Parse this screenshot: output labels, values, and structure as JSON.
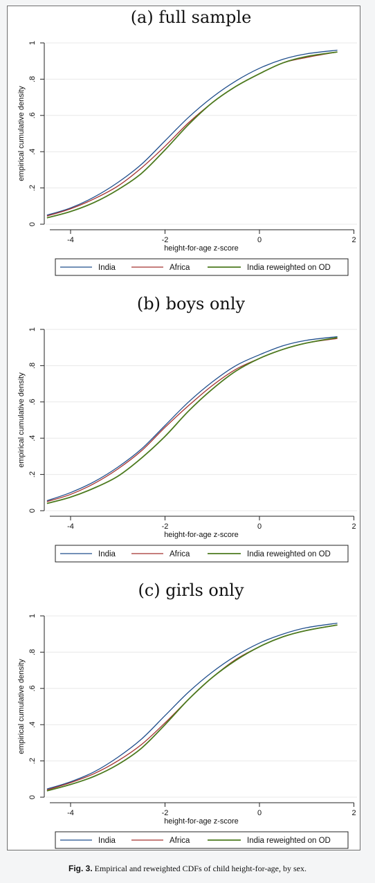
{
  "colors": {
    "India": "#1f4e8c",
    "Africa": "#a3302e",
    "India reweighted on OD": "#4c7a1e",
    "grid": "#e8e8e8",
    "axis": "#222222"
  },
  "caption": {
    "label": "Fig. 3.",
    "text": "Empirical and reweighted CDFs of child height-for-age, by sex."
  },
  "chart_data": [
    {
      "type": "line",
      "title": "(a) full sample",
      "xlabel": "height-for-age z-score",
      "ylabel": "empirical cumulative density",
      "xlim": [
        -4.5,
        1.65
      ],
      "ylim": [
        0,
        1
      ],
      "xticks": [
        "-4",
        "-2",
        "0",
        "2"
      ],
      "yticks": [
        "0",
        ".2",
        ".4",
        ".6",
        ".8",
        "1"
      ],
      "grid": true,
      "legend": "bottom",
      "x": [
        -4.5,
        -4,
        -3.5,
        -3,
        -2.5,
        -2,
        -1.5,
        -1,
        -0.5,
        0,
        0.5,
        1,
        1.65
      ],
      "series": [
        {
          "name": "India",
          "values": [
            0.05,
            0.09,
            0.15,
            0.23,
            0.33,
            0.46,
            0.59,
            0.7,
            0.79,
            0.86,
            0.91,
            0.94,
            0.96
          ]
        },
        {
          "name": "Africa",
          "values": [
            0.045,
            0.085,
            0.14,
            0.21,
            0.31,
            0.43,
            0.56,
            0.67,
            0.76,
            0.83,
            0.89,
            0.92,
            0.95
          ]
        },
        {
          "name": "India reweighted on OD",
          "values": [
            0.035,
            0.07,
            0.12,
            0.19,
            0.28,
            0.41,
            0.55,
            0.67,
            0.76,
            0.83,
            0.89,
            0.925,
            0.95
          ]
        }
      ]
    },
    {
      "type": "line",
      "title": "(b) boys only",
      "xlabel": "height-for-age z-score",
      "ylabel": "empirical cumulative density",
      "xlim": [
        -4.5,
        1.65
      ],
      "ylim": [
        0,
        1
      ],
      "xticks": [
        "-4",
        "-2",
        "0",
        "2"
      ],
      "yticks": [
        "0",
        ".2",
        ".4",
        ".6",
        ".8",
        "1"
      ],
      "grid": true,
      "legend": "bottom",
      "x": [
        -4.5,
        -4,
        -3.5,
        -3,
        -2.5,
        -2,
        -1.5,
        -1,
        -0.5,
        0,
        0.5,
        1,
        1.65
      ],
      "series": [
        {
          "name": "India",
          "values": [
            0.055,
            0.1,
            0.16,
            0.24,
            0.34,
            0.47,
            0.6,
            0.71,
            0.8,
            0.86,
            0.91,
            0.94,
            0.96
          ]
        },
        {
          "name": "Africa",
          "values": [
            0.05,
            0.09,
            0.15,
            0.23,
            0.33,
            0.46,
            0.58,
            0.69,
            0.78,
            0.84,
            0.89,
            0.925,
            0.95
          ]
        },
        {
          "name": "India reweighted on OD",
          "values": [
            0.04,
            0.075,
            0.125,
            0.19,
            0.29,
            0.41,
            0.55,
            0.67,
            0.77,
            0.84,
            0.89,
            0.925,
            0.955
          ]
        }
      ]
    },
    {
      "type": "line",
      "title": "(c) girls only",
      "xlabel": "height-for-age z-score",
      "ylabel": "empirical cumulative density",
      "xlim": [
        -4.5,
        1.65
      ],
      "ylim": [
        0,
        1
      ],
      "xticks": [
        "-4",
        "-2",
        "0",
        "2"
      ],
      "yticks": [
        "0",
        ".2",
        ".4",
        ".6",
        ".8",
        "1"
      ],
      "grid": true,
      "legend": "bottom",
      "x": [
        -4.5,
        -4,
        -3.5,
        -3,
        -2.5,
        -2,
        -1.5,
        -1,
        -0.5,
        0,
        0.5,
        1,
        1.65
      ],
      "series": [
        {
          "name": "India",
          "values": [
            0.045,
            0.085,
            0.14,
            0.22,
            0.32,
            0.45,
            0.58,
            0.69,
            0.78,
            0.85,
            0.9,
            0.935,
            0.96
          ]
        },
        {
          "name": "Africa",
          "values": [
            0.04,
            0.08,
            0.13,
            0.2,
            0.29,
            0.41,
            0.54,
            0.66,
            0.76,
            0.83,
            0.885,
            0.92,
            0.95
          ]
        },
        {
          "name": "India reweighted on OD",
          "values": [
            0.035,
            0.07,
            0.115,
            0.18,
            0.27,
            0.4,
            0.54,
            0.66,
            0.755,
            0.83,
            0.885,
            0.92,
            0.95
          ]
        }
      ]
    }
  ]
}
